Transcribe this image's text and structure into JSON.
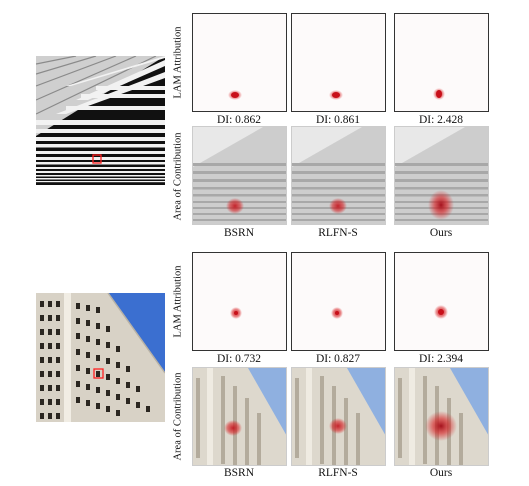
{
  "figure": {
    "row_labels": {
      "lam": "LAM Attribution",
      "area": "Area of Contribution"
    },
    "methods": [
      "BSRN",
      "RLFN-S",
      "Ours"
    ],
    "examples": [
      {
        "name": "striped-building",
        "di_values": [
          "DI: 0.862",
          "DI: 0.861",
          "DI: 2.428"
        ],
        "di_numbers": [
          0.862,
          0.861,
          2.428
        ]
      },
      {
        "name": "facade-building",
        "di_values": [
          "DI: 0.732",
          "DI: 0.827",
          "DI: 2.394"
        ],
        "di_numbers": [
          0.732,
          0.827,
          2.394
        ]
      }
    ]
  },
  "colors": {
    "heat": "#d7191c",
    "box": "#ff2020",
    "sky": "#3b6fd0"
  }
}
